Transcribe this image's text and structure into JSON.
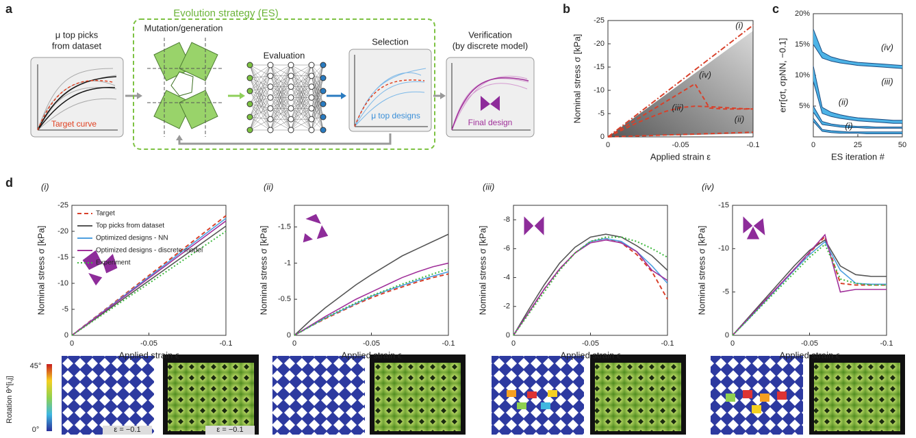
{
  "panel_labels": [
    "a",
    "b",
    "c",
    "d"
  ],
  "panel_a": {
    "top_picks_title": [
      "μ top picks",
      "from dataset"
    ],
    "target_curve": "Target curve",
    "es_title": "Evolution strategy (ES)",
    "mutation": "Mutation/generation",
    "evaluation": "Evaluation",
    "selection": "Selection",
    "top_designs": "μ top designs",
    "verification": [
      "Verification",
      "(by discrete model)"
    ],
    "final_design": "Final design"
  },
  "bottom_row": {
    "colorbar_max": "45°",
    "colorbar_min": "0°",
    "colorbar_label": "Rotation θ^[i,j]",
    "strain_labels": [
      "ε = −0.1",
      "ε = −0.1"
    ]
  },
  "chart_data": [
    {
      "type": "line",
      "xlabel": "Applied strain ε",
      "ylabel": "Nominal stress σ [kPa]",
      "x": [
        0,
        -0.01,
        -0.02,
        -0.03,
        -0.04,
        -0.05,
        -0.06,
        -0.07,
        -0.08,
        -0.09,
        -0.1
      ],
      "xlim": [
        0,
        -0.1
      ],
      "xticks": [
        0,
        -0.05,
        -0.1
      ],
      "ylim": [
        0,
        -25
      ],
      "yticks": [
        0,
        -5,
        -10,
        -15,
        -20,
        -25
      ],
      "series": [
        {
          "name": "(i)",
          "color": "#d8402a",
          "style": "dashdot",
          "values": [
            0,
            -2.4,
            -4.8,
            -7.2,
            -9.6,
            -12,
            -14.4,
            -16.8,
            -19.2,
            -21.6,
            -24
          ]
        },
        {
          "name": "(ii)",
          "color": "#d8402a",
          "style": "dashed",
          "values": [
            0,
            -0.1,
            -0.2,
            -0.3,
            -0.4,
            -0.5,
            -0.6,
            -0.7,
            -0.8,
            -0.9,
            -1
          ]
        },
        {
          "name": "(iii)",
          "color": "#d8402a",
          "style": "dashed",
          "values": [
            0,
            -1.5,
            -3,
            -4.3,
            -5.5,
            -6.3,
            -6.6,
            -6.5,
            -6.3,
            -6.1,
            -6
          ]
        },
        {
          "name": "(iv)",
          "color": "#d8402a",
          "style": "dashed",
          "values": [
            0,
            -1.9,
            -3.8,
            -5.7,
            -7.6,
            -9.5,
            -11.4,
            -6.2,
            -6,
            -6,
            -6
          ]
        }
      ]
    },
    {
      "type": "band",
      "xlabel": "ES iteration #",
      "ylabel": "err[σt, σpNN, −0.1]",
      "x": [
        0,
        5,
        10,
        15,
        20,
        25,
        30,
        35,
        40,
        45,
        50
      ],
      "xlim": [
        0,
        50
      ],
      "xticks": [
        0,
        25,
        50
      ],
      "ylim": [
        0,
        20
      ],
      "yticks": [
        {
          "value": 5,
          "label": "5%"
        },
        {
          "value": 10,
          "label": "10%"
        },
        {
          "value": 15,
          "label": "15%"
        },
        {
          "value": 20,
          "label": "20%"
        }
      ],
      "series": [
        {
          "name": "(iv)",
          "color": "#4db3e6",
          "upper": [
            17.5,
            13.8,
            13,
            12.6,
            12.3,
            12.1,
            12,
            11.9,
            11.8,
            11.7,
            11.6
          ],
          "lower": [
            15,
            12.8,
            12.3,
            12,
            11.8,
            11.6,
            11.5,
            11.4,
            11.3,
            11.2,
            11.1
          ]
        },
        {
          "name": "(iii)",
          "color": "#4db3e6",
          "upper": [
            11.5,
            4.8,
            4,
            3.6,
            3.3,
            3.1,
            3,
            2.9,
            2.8,
            2.7,
            2.7
          ],
          "lower": [
            9,
            3.8,
            3.3,
            3,
            2.8,
            2.6,
            2.5,
            2.4,
            2.3,
            2.2,
            2.2
          ]
        },
        {
          "name": "(ii)",
          "color": "#4db3e6",
          "upper": [
            5,
            2.5,
            2.1,
            1.9,
            1.8,
            1.7,
            1.7,
            1.6,
            1.6,
            1.6,
            1.6
          ],
          "lower": [
            4,
            2,
            1.8,
            1.6,
            1.5,
            1.5,
            1.4,
            1.4,
            1.4,
            1.4,
            1.4
          ]
        },
        {
          "name": "(i)",
          "color": "#4db3e6",
          "upper": [
            3,
            1.2,
            1,
            0.9,
            0.8,
            0.8,
            0.8,
            0.8,
            0.8,
            0.8,
            0.8
          ],
          "lower": [
            2.5,
            0.9,
            0.7,
            0.6,
            0.6,
            0.6,
            0.5,
            0.5,
            0.5,
            0.5,
            0.5
          ]
        }
      ]
    },
    {
      "type": "line",
      "subtitle": "(i)",
      "xlabel": "Applied strain ϵ",
      "ylabel": "Nominal stress σ [kPa]",
      "legend": "upper left",
      "x": [
        0,
        -0.01,
        -0.02,
        -0.03,
        -0.04,
        -0.05,
        -0.06,
        -0.07,
        -0.08,
        -0.09,
        -0.1
      ],
      "xlim": [
        0,
        -0.1
      ],
      "xticks": [
        0,
        -0.05,
        -0.1
      ],
      "ylim": [
        0,
        -25
      ],
      "yticks": [
        0,
        -5,
        -10,
        -15,
        -20,
        -25
      ],
      "series": [
        {
          "name": "Target",
          "color": "#d8402a",
          "style": "dashed",
          "values": [
            0,
            -2.3,
            -4.6,
            -6.9,
            -9.2,
            -11.5,
            -13.8,
            -16.1,
            -18.4,
            -20.7,
            -23
          ]
        },
        {
          "name": "Top picks from dataset",
          "color": "#555555",
          "style": "solid",
          "values": [
            0,
            -2.1,
            -4.2,
            -6.3,
            -8.4,
            -10.5,
            -12.6,
            -14.7,
            -16.8,
            -18.9,
            -21
          ]
        },
        {
          "name": "Optimized designs - NN",
          "color": "#4d9fe0",
          "style": "solid",
          "values": [
            0,
            -2.25,
            -4.5,
            -6.75,
            -9,
            -11.25,
            -13.5,
            -15.75,
            -18,
            -20.25,
            -22.5
          ]
        },
        {
          "name": "Optimized designs - discrete model",
          "color": "#a0309a",
          "style": "solid",
          "values": [
            0,
            -2.2,
            -4.4,
            -6.6,
            -8.8,
            -11,
            -13.2,
            -15.4,
            -17.6,
            -19.8,
            -22
          ]
        },
        {
          "name": "Experiment",
          "color": "#3db83d",
          "style": "dotted",
          "values": [
            0,
            -2,
            -4,
            -6,
            -8,
            -10,
            -12,
            -14,
            -16,
            -18,
            -20
          ]
        }
      ]
    },
    {
      "type": "line",
      "subtitle": "(ii)",
      "xlabel": "Applied strain ϵ",
      "ylabel": "Nominal stress σ [kPa]",
      "x": [
        0,
        -0.01,
        -0.02,
        -0.03,
        -0.04,
        -0.05,
        -0.06,
        -0.07,
        -0.08,
        -0.09,
        -0.1
      ],
      "xlim": [
        0,
        -0.1
      ],
      "xticks": [
        0,
        -0.05,
        -0.1
      ],
      "ylim": [
        0,
        -1.8
      ],
      "yticks": [
        0,
        -0.5,
        -1,
        -1.5
      ],
      "series": [
        {
          "color": "#d8402a",
          "style": "dashed",
          "values": [
            0,
            -0.12,
            -0.23,
            -0.33,
            -0.43,
            -0.52,
            -0.6,
            -0.67,
            -0.74,
            -0.8,
            -0.85
          ]
        },
        {
          "color": "#555555",
          "style": "solid",
          "values": [
            0,
            -0.2,
            -0.38,
            -0.54,
            -0.7,
            -0.84,
            -0.97,
            -1.1,
            -1.2,
            -1.3,
            -1.4
          ]
        },
        {
          "color": "#4d9fe0",
          "style": "solid",
          "values": [
            0,
            -0.12,
            -0.24,
            -0.34,
            -0.44,
            -0.54,
            -0.62,
            -0.69,
            -0.76,
            -0.82,
            -0.88
          ]
        },
        {
          "color": "#a0309a",
          "style": "solid",
          "values": [
            0,
            -0.13,
            -0.26,
            -0.38,
            -0.5,
            -0.6,
            -0.7,
            -0.8,
            -0.88,
            -0.95,
            -1
          ]
        },
        {
          "color": "#3db83d",
          "style": "dotted",
          "values": [
            0,
            -0.12,
            -0.24,
            -0.35,
            -0.45,
            -0.55,
            -0.63,
            -0.71,
            -0.78,
            -0.85,
            -0.92
          ]
        }
      ]
    },
    {
      "type": "line",
      "subtitle": "(iii)",
      "xlabel": "Applied strain ϵ",
      "ylabel": "Nominal stress σ [kPa]",
      "x": [
        0,
        -0.01,
        -0.02,
        -0.03,
        -0.04,
        -0.05,
        -0.06,
        -0.07,
        -0.08,
        -0.09,
        -0.1
      ],
      "xlim": [
        0,
        -0.1
      ],
      "xticks": [
        0,
        -0.05,
        -0.1
      ],
      "ylim": [
        0,
        -9
      ],
      "yticks": [
        0,
        -2,
        -4,
        -6,
        -8
      ],
      "series": [
        {
          "color": "#d8402a",
          "style": "dashed",
          "values": [
            0,
            -1.6,
            -3.2,
            -4.6,
            -5.7,
            -6.5,
            -6.7,
            -6.4,
            -5.6,
            -4.4,
            -2.5
          ]
        },
        {
          "color": "#555555",
          "style": "solid",
          "values": [
            0,
            -1.8,
            -3.5,
            -5,
            -6.1,
            -6.8,
            -7,
            -6.8,
            -6.2,
            -5.5,
            -4.5
          ]
        },
        {
          "color": "#4d9fe0",
          "style": "solid",
          "values": [
            0,
            -1.6,
            -3.2,
            -4.6,
            -5.7,
            -6.5,
            -6.7,
            -6.5,
            -5.8,
            -4.8,
            -3.6
          ]
        },
        {
          "color": "#a0309a",
          "style": "solid",
          "values": [
            0,
            -1.6,
            -3.2,
            -4.6,
            -5.7,
            -6.4,
            -6.6,
            -6.4,
            -5.8,
            -4.5,
            -3.8
          ]
        },
        {
          "color": "#3db83d",
          "style": "dotted",
          "values": [
            0,
            -1.5,
            -3,
            -4.5,
            -5.7,
            -6.5,
            -6.8,
            -6.8,
            -6.5,
            -6,
            -5.4
          ]
        }
      ]
    },
    {
      "type": "line",
      "subtitle": "(iv)",
      "xlabel": "Applied strain ϵ",
      "ylabel": "Nominal stress σ [kPa]",
      "x": [
        0,
        -0.01,
        -0.02,
        -0.03,
        -0.04,
        -0.05,
        -0.06,
        -0.07,
        -0.08,
        -0.09,
        -0.1
      ],
      "xlim": [
        0,
        -0.1
      ],
      "xticks": [
        0,
        -0.05,
        -0.1
      ],
      "ylim": [
        0,
        -15
      ],
      "yticks": [
        0,
        -5,
        -10,
        -15
      ],
      "series": [
        {
          "color": "#d8402a",
          "style": "dashed",
          "values": [
            0,
            -1.9,
            -3.8,
            -5.7,
            -7.6,
            -9.5,
            -11.4,
            -6,
            -5.8,
            -5.8,
            -5.8
          ]
        },
        {
          "color": "#555555",
          "style": "solid",
          "values": [
            0,
            -2,
            -4,
            -6,
            -8,
            -9.8,
            -11,
            -8,
            -7,
            -6.8,
            -6.8
          ]
        },
        {
          "color": "#4d9fe0",
          "style": "solid",
          "values": [
            0,
            -1.8,
            -3.7,
            -5.6,
            -7.5,
            -9.3,
            -10.8,
            -7.5,
            -6,
            -5.9,
            -5.9
          ]
        },
        {
          "color": "#a0309a",
          "style": "solid",
          "values": [
            0,
            -1.9,
            -3.8,
            -5.7,
            -7.6,
            -9.6,
            -11.6,
            -5,
            -5.3,
            -5.3,
            -5.3
          ]
        },
        {
          "color": "#3db83d",
          "style": "dotted",
          "values": [
            0,
            -1.8,
            -3.6,
            -5.4,
            -7.2,
            -9,
            -10.5,
            -6.5,
            -6,
            -5.8,
            -5.8
          ]
        }
      ]
    }
  ]
}
